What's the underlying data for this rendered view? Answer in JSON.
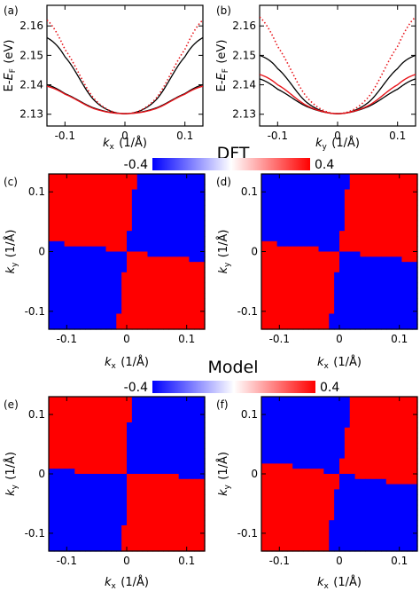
{
  "colors": {
    "black_curve": "#000000",
    "red_curve": "#e8151b",
    "red_dotted": "#e8151b",
    "map_red": "#ff0000",
    "map_blue": "#0000ff",
    "colorbar_low": "#0000ff",
    "colorbar_mid": "#ffffff",
    "colorbar_high": "#ff0000"
  },
  "sections": {
    "dft": "DFT",
    "model": "Model"
  },
  "colorbars": [
    {
      "section": "DFT",
      "min_label": "-0.4",
      "max_label": "0.4",
      "range": [
        -0.4,
        0.4
      ]
    },
    {
      "section": "Model",
      "min_label": "-0.4",
      "max_label": "0.4",
      "range": [
        -0.4,
        0.4
      ]
    }
  ],
  "chart_data": [
    {
      "id": "a",
      "panel_label": "(a)",
      "type": "line",
      "xlabel": "k_x (1/Å)",
      "ylabel": "E-E_F (eV)",
      "xlim": [
        -0.13,
        0.13
      ],
      "ylim": [
        2.126,
        2.167
      ],
      "xticks": [
        -0.1,
        0,
        0.1
      ],
      "xtick_labels": [
        "-0.1",
        "0",
        "0.1"
      ],
      "yticks": [
        2.13,
        2.14,
        2.15,
        2.16
      ],
      "ytick_labels": [
        "2.13",
        "2.14",
        "2.15",
        "2.16"
      ],
      "series": [
        {
          "style": "solid-black",
          "x": [
            -0.13,
            -0.1,
            -0.05,
            0,
            0.05,
            0.1,
            0.13
          ],
          "y": [
            2.156,
            2.1495,
            2.1345,
            2.1302,
            2.1345,
            2.1495,
            2.156
          ]
        },
        {
          "style": "solid-black",
          "x": [
            -0.13,
            -0.1,
            -0.05,
            0,
            0.05,
            0.1,
            0.13
          ],
          "y": [
            2.14,
            2.137,
            2.132,
            2.1302,
            2.132,
            2.137,
            2.14
          ]
        },
        {
          "style": "solid-red",
          "x": [
            -0.13,
            -0.1,
            -0.05,
            0,
            0.05,
            0.1,
            0.13
          ],
          "y": [
            2.1395,
            2.1368,
            2.1318,
            2.1302,
            2.1318,
            2.1368,
            2.1395
          ]
        },
        {
          "style": "dotted-red",
          "x": [
            -0.13,
            -0.1,
            -0.05,
            0,
            0.05,
            0.1,
            0.13
          ],
          "y": [
            2.162,
            2.152,
            2.135,
            2.1302,
            2.135,
            2.152,
            2.162
          ]
        }
      ]
    },
    {
      "id": "b",
      "panel_label": "(b)",
      "type": "line",
      "xlabel": "k_y (1/Å)",
      "ylabel": "E-E_F (eV)",
      "xlim": [
        -0.13,
        0.13
      ],
      "ylim": [
        2.126,
        2.167
      ],
      "xticks": [
        -0.1,
        0,
        0.1
      ],
      "xtick_labels": [
        "-0.1",
        "0",
        "0.1"
      ],
      "yticks": [
        2.13,
        2.14,
        2.15,
        2.16
      ],
      "ytick_labels": [
        "2.13",
        "2.14",
        "2.15",
        "2.16"
      ],
      "series": [
        {
          "style": "solid-black",
          "x": [
            -0.13,
            -0.1,
            -0.05,
            0,
            0.05,
            0.1,
            0.13
          ],
          "y": [
            2.15,
            2.1455,
            2.1338,
            2.1302,
            2.1338,
            2.1455,
            2.15
          ]
        },
        {
          "style": "solid-black",
          "x": [
            -0.13,
            -0.1,
            -0.05,
            0,
            0.05,
            0.1,
            0.13
          ],
          "y": [
            2.142,
            2.1385,
            2.1325,
            2.1302,
            2.1325,
            2.1385,
            2.142
          ]
        },
        {
          "style": "solid-red",
          "x": [
            -0.13,
            -0.1,
            -0.05,
            0,
            0.05,
            0.1,
            0.13
          ],
          "y": [
            2.1435,
            2.14,
            2.1328,
            2.1302,
            2.1328,
            2.14,
            2.1435
          ]
        },
        {
          "style": "dotted-red",
          "x": [
            -0.13,
            -0.1,
            -0.05,
            0,
            0.05,
            0.1,
            0.13
          ],
          "y": [
            2.163,
            2.153,
            2.1355,
            2.1302,
            2.1355,
            2.153,
            2.163
          ]
        }
      ]
    },
    {
      "id": "c",
      "panel_label": "(c)",
      "type": "heatmap",
      "section": "DFT",
      "xlabel": "k_x (1/Å)",
      "ylabel": "k_y (1/Å)",
      "xlim": [
        -0.13,
        0.13
      ],
      "ylim": [
        -0.13,
        0.13
      ],
      "xticks": [
        -0.1,
        0,
        0.1
      ],
      "xtick_labels": [
        "-0.1",
        "0",
        "0.1"
      ],
      "yticks": [
        -0.1,
        0,
        0.1
      ],
      "ytick_labels": [
        "-0.1",
        "0",
        "0.1"
      ],
      "grid_size": 30,
      "pattern": "sign(kx*ky) positive -> -0.4 (blue), negative -> 0.4 (red)",
      "value_positive_product": -0.4,
      "value_negative_product": 0.4,
      "boundary_angle_deg": 38
    },
    {
      "id": "d",
      "panel_label": "(d)",
      "type": "heatmap",
      "section": "DFT",
      "xlabel": "k_x (1/Å)",
      "ylabel": "k_y (1/Å)",
      "xlim": [
        -0.13,
        0.13
      ],
      "ylim": [
        -0.13,
        0.13
      ],
      "xticks": [
        -0.1,
        0,
        0.1
      ],
      "xtick_labels": [
        "-0.1",
        "0",
        "0.1"
      ],
      "yticks": [
        -0.1,
        0,
        0.1
      ],
      "ytick_labels": [
        "-0.1",
        "0",
        "0.1"
      ],
      "grid_size": 30,
      "pattern": "sign(kx*ky) positive -> 0.4 (red), negative -> -0.4 (blue)",
      "value_positive_product": 0.4,
      "value_negative_product": -0.4,
      "boundary_angle_deg": 38
    },
    {
      "id": "e",
      "panel_label": "(e)",
      "type": "heatmap",
      "section": "Model",
      "xlabel": "k_x (1/Å)",
      "ylabel": "k_y (1/Å)",
      "xlim": [
        -0.13,
        0.13
      ],
      "ylim": [
        -0.13,
        0.13
      ],
      "xticks": [
        -0.1,
        0,
        0.1
      ],
      "xtick_labels": [
        "-0.1",
        "0",
        "0.1"
      ],
      "yticks": [
        -0.1,
        0,
        0.1
      ],
      "ytick_labels": [
        "-0.1",
        "0",
        "0.1"
      ],
      "grid_size": 30,
      "pattern": "sign(kx*ky) positive -> -0.4 (blue), negative -> 0.4 (red)",
      "value_positive_product": -0.4,
      "value_negative_product": 0.4,
      "boundary_angle_deg": 42
    },
    {
      "id": "f",
      "panel_label": "(f)",
      "type": "heatmap",
      "section": "Model",
      "xlabel": "k_x (1/Å)",
      "ylabel": "k_y (1/Å)",
      "xlim": [
        -0.13,
        0.13
      ],
      "ylim": [
        -0.13,
        0.13
      ],
      "xticks": [
        -0.1,
        0,
        0.1
      ],
      "xtick_labels": [
        "-0.1",
        "0",
        "0.1"
      ],
      "yticks": [
        -0.1,
        0,
        0.1
      ],
      "ytick_labels": [
        "-0.1",
        "0",
        "0.1"
      ],
      "grid_size": 30,
      "pattern": "sign(kx*ky) positive -> 0.4 (red), negative -> -0.4 (blue)",
      "value_positive_product": 0.4,
      "value_negative_product": -0.4,
      "boundary_angle_deg": 36
    }
  ]
}
